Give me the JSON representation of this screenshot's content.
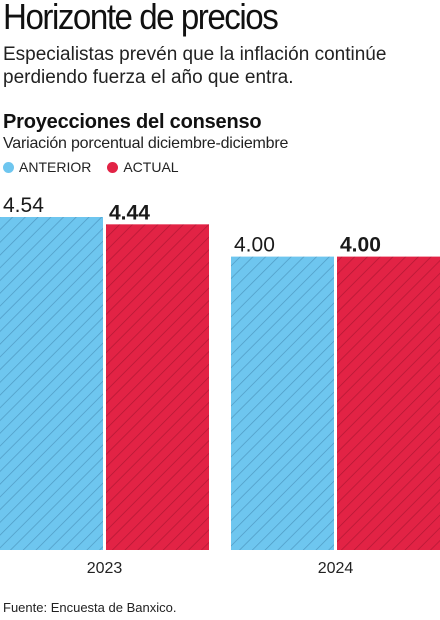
{
  "title": "Horizonte de precios",
  "subtitle": "Especialistas prevén que la inflación continúe perdiendo fuerza el año que entra.",
  "section_title": "Proyecciones del consenso",
  "section_subtitle": "Variación porcentual diciembre-diciembre",
  "source": "Fuente: Encuesta de Banxico.",
  "colors": {
    "anterior": "#6ec6ef",
    "actual": "#e22345"
  },
  "chart_data": {
    "type": "bar",
    "categories": [
      "2023",
      "2024"
    ],
    "series": [
      {
        "name": "ANTERIOR",
        "values": [
          4.54,
          4.0
        ],
        "value_labels": [
          "4.54",
          "4.00"
        ],
        "color": "#6ec6ef"
      },
      {
        "name": "ACTUAL",
        "values": [
          4.44,
          4.0
        ],
        "value_labels": [
          "4.44",
          "4.00"
        ],
        "color": "#e22345"
      }
    ],
    "ylim": [
      0,
      4.54
    ],
    "grid": false,
    "legend": "top-left",
    "pattern": "diagonal-hatch"
  }
}
